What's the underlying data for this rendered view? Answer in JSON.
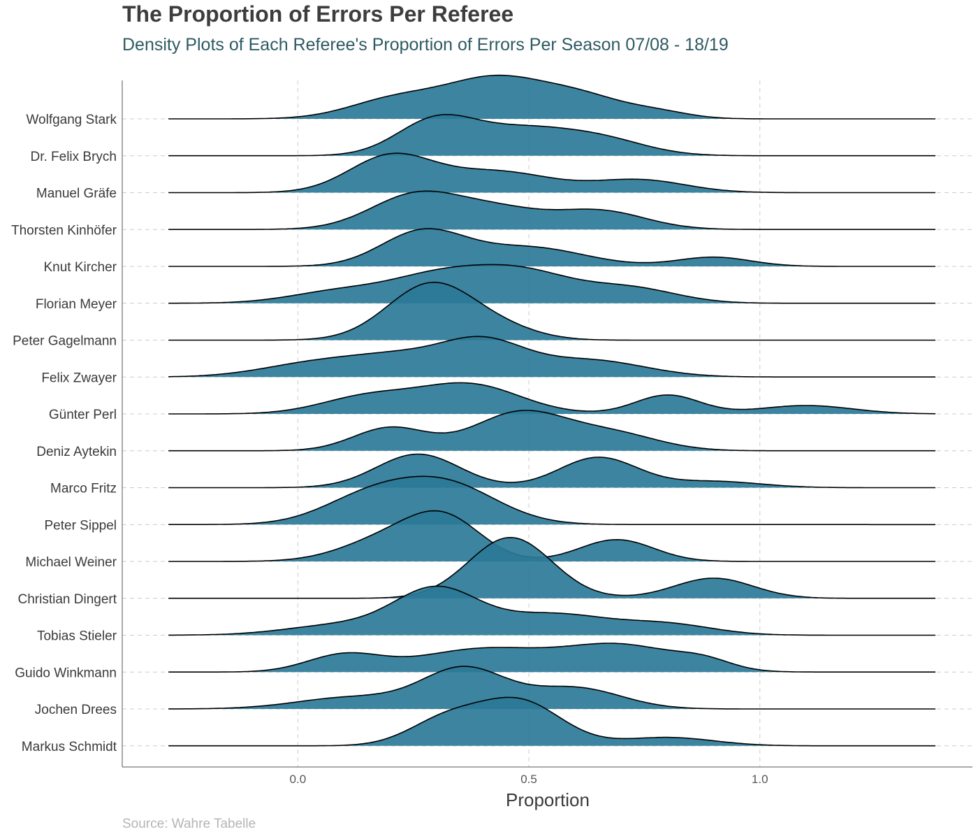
{
  "title": "The Proportion of Errors Per Referee",
  "subtitle": "Density Plots of Each Referee's Proportion of Errors Per Season 07/08 - 18/19",
  "caption": "Source: Wahre Tabelle",
  "colors": {
    "fill": "#2b7a97",
    "line": "#000000",
    "grid": "#cccccc",
    "axis": "#555555"
  },
  "chart_data": {
    "type": "area",
    "subtype": "ridgeline-density",
    "title": "The Proportion of Errors Per Referee",
    "subtitle": "Density Plots of Each Referee's Proportion of Errors Per Season 07/08 - 18/19",
    "xlabel": "Proportion",
    "ylabel": "",
    "xlim": [
      -0.38,
      1.46
    ],
    "x_ticks": [
      0.0,
      0.5,
      1.0
    ],
    "x_tick_labels": [
      "0.0",
      "0.5",
      "1.0"
    ],
    "grid": "dashed",
    "x_support": [
      -0.28,
      1.38
    ],
    "series": [
      {
        "name": "Wolfgang Stark",
        "peaks": [
          {
            "x": 0.21,
            "h": 0.45,
            "w": 0.1
          },
          {
            "x": 0.43,
            "h": 0.95,
            "w": 0.11
          },
          {
            "x": 0.62,
            "h": 0.45,
            "w": 0.09
          },
          {
            "x": 0.78,
            "h": 0.15,
            "w": 0.07
          }
        ]
      },
      {
        "name": "Dr. Felix Brych",
        "peaks": [
          {
            "x": 0.3,
            "h": 0.85,
            "w": 0.085
          },
          {
            "x": 0.48,
            "h": 0.55,
            "w": 0.1
          },
          {
            "x": 0.65,
            "h": 0.4,
            "w": 0.1
          }
        ]
      },
      {
        "name": "Manuel Gräfe",
        "peaks": [
          {
            "x": 0.2,
            "h": 0.85,
            "w": 0.09
          },
          {
            "x": 0.43,
            "h": 0.5,
            "w": 0.12
          },
          {
            "x": 0.74,
            "h": 0.3,
            "w": 0.1
          }
        ]
      },
      {
        "name": "Thorsten Kinhöfer",
        "peaks": [
          {
            "x": 0.26,
            "h": 0.85,
            "w": 0.1
          },
          {
            "x": 0.44,
            "h": 0.4,
            "w": 0.09
          },
          {
            "x": 0.65,
            "h": 0.45,
            "w": 0.1
          }
        ]
      },
      {
        "name": "Knut Kircher",
        "peaks": [
          {
            "x": 0.27,
            "h": 0.82,
            "w": 0.09
          },
          {
            "x": 0.5,
            "h": 0.45,
            "w": 0.12
          },
          {
            "x": 0.9,
            "h": 0.22,
            "w": 0.08
          }
        ]
      },
      {
        "name": "Florian Meyer",
        "peaks": [
          {
            "x": 0.1,
            "h": 0.3,
            "w": 0.11
          },
          {
            "x": 0.3,
            "h": 0.55,
            "w": 0.1
          },
          {
            "x": 0.48,
            "h": 0.75,
            "w": 0.11
          },
          {
            "x": 0.72,
            "h": 0.35,
            "w": 0.1
          }
        ]
      },
      {
        "name": "Peter Gagelmann",
        "peaks": [
          {
            "x": 0.29,
            "h": 1.35,
            "w": 0.095
          },
          {
            "x": 0.45,
            "h": 0.2,
            "w": 0.08
          }
        ]
      },
      {
        "name": "Felix Zwayer",
        "peaks": [
          {
            "x": 0.05,
            "h": 0.35,
            "w": 0.12
          },
          {
            "x": 0.23,
            "h": 0.4,
            "w": 0.1
          },
          {
            "x": 0.4,
            "h": 0.8,
            "w": 0.09
          },
          {
            "x": 0.63,
            "h": 0.4,
            "w": 0.12
          }
        ]
      },
      {
        "name": "Günter Perl",
        "peaks": [
          {
            "x": 0.15,
            "h": 0.4,
            "w": 0.1
          },
          {
            "x": 0.37,
            "h": 0.7,
            "w": 0.11
          },
          {
            "x": 0.8,
            "h": 0.45,
            "w": 0.07
          },
          {
            "x": 1.1,
            "h": 0.2,
            "w": 0.1
          }
        ]
      },
      {
        "name": "Deniz Aytekin",
        "peaks": [
          {
            "x": 0.2,
            "h": 0.55,
            "w": 0.08
          },
          {
            "x": 0.48,
            "h": 0.9,
            "w": 0.1
          },
          {
            "x": 0.68,
            "h": 0.4,
            "w": 0.1
          }
        ]
      },
      {
        "name": "Marco Fritz",
        "peaks": [
          {
            "x": 0.26,
            "h": 0.8,
            "w": 0.09
          },
          {
            "x": 0.65,
            "h": 0.72,
            "w": 0.085
          },
          {
            "x": 0.9,
            "h": 0.15,
            "w": 0.1
          }
        ]
      },
      {
        "name": "Peter Sippel",
        "peaks": [
          {
            "x": 0.15,
            "h": 0.6,
            "w": 0.1
          },
          {
            "x": 0.32,
            "h": 0.95,
            "w": 0.11
          }
        ]
      },
      {
        "name": "Michael Weiner",
        "peaks": [
          {
            "x": 0.2,
            "h": 0.55,
            "w": 0.1
          },
          {
            "x": 0.32,
            "h": 0.9,
            "w": 0.08
          },
          {
            "x": 0.69,
            "h": 0.52,
            "w": 0.08
          }
        ]
      },
      {
        "name": "Christian Dingert",
        "peaks": [
          {
            "x": 0.46,
            "h": 1.45,
            "w": 0.09
          },
          {
            "x": 0.9,
            "h": 0.48,
            "w": 0.085
          }
        ]
      },
      {
        "name": "Tobias Stieler",
        "peaks": [
          {
            "x": 0.1,
            "h": 0.25,
            "w": 0.12
          },
          {
            "x": 0.3,
            "h": 1.05,
            "w": 0.09
          },
          {
            "x": 0.55,
            "h": 0.5,
            "w": 0.12
          },
          {
            "x": 0.8,
            "h": 0.25,
            "w": 0.1
          }
        ]
      },
      {
        "name": "Guido Winkmann",
        "peaks": [
          {
            "x": 0.1,
            "h": 0.4,
            "w": 0.08
          },
          {
            "x": 0.4,
            "h": 0.55,
            "w": 0.14
          },
          {
            "x": 0.7,
            "h": 0.62,
            "w": 0.12
          },
          {
            "x": 0.88,
            "h": 0.2,
            "w": 0.06
          }
        ]
      },
      {
        "name": "Jochen Drees",
        "peaks": [
          {
            "x": 0.12,
            "h": 0.28,
            "w": 0.12
          },
          {
            "x": 0.36,
            "h": 0.95,
            "w": 0.09
          },
          {
            "x": 0.6,
            "h": 0.5,
            "w": 0.1
          }
        ]
      },
      {
        "name": "Markus Schmidt",
        "peaks": [
          {
            "x": 0.32,
            "h": 0.6,
            "w": 0.08
          },
          {
            "x": 0.48,
            "h": 1.05,
            "w": 0.09
          },
          {
            "x": 0.8,
            "h": 0.2,
            "w": 0.1
          }
        ]
      }
    ]
  }
}
